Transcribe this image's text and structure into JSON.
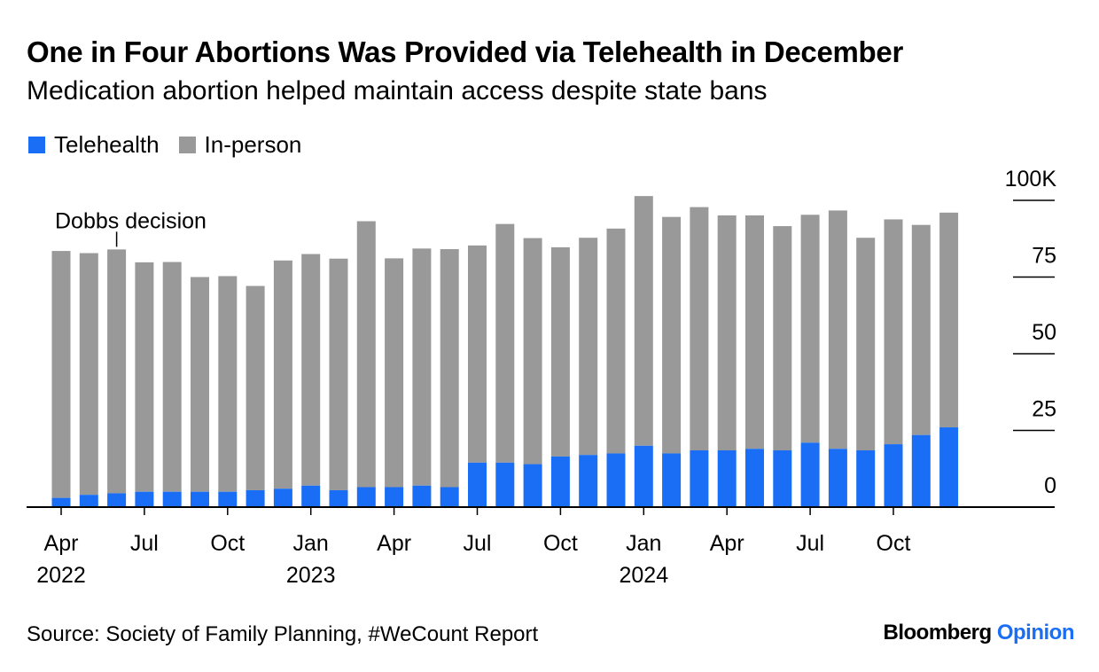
{
  "header": {
    "title": "One in Four Abortions Was Provided via Telehealth in December",
    "subtitle": "Medication abortion helped maintain access despite state bans"
  },
  "legend": [
    {
      "label": "Telehealth",
      "color": "#1a6ef5"
    },
    {
      "label": "In-person",
      "color": "#999999"
    }
  ],
  "footer": {
    "source": "Source: Society of Family Planning, #WeCount Report",
    "brand_main": "Bloomberg",
    "brand_accent": "Opinion"
  },
  "chart_data": {
    "type": "bar",
    "stacked": true,
    "categories": [
      "2022-04",
      "2022-05",
      "2022-06",
      "2022-07",
      "2022-08",
      "2022-09",
      "2022-10",
      "2022-11",
      "2022-12",
      "2023-01",
      "2023-02",
      "2023-03",
      "2023-04",
      "2023-05",
      "2023-06",
      "2023-07",
      "2023-08",
      "2023-09",
      "2023-10",
      "2023-11",
      "2023-12",
      "2024-01",
      "2024-02",
      "2024-03",
      "2024-04",
      "2024-05",
      "2024-06",
      "2024-07",
      "2024-08",
      "2024-09",
      "2024-10",
      "2024-11",
      "2024-12"
    ],
    "series": [
      {
        "name": "Telehealth",
        "color": "#1a6ef5",
        "values": [
          3.0,
          4.0,
          4.5,
          5.0,
          5.0,
          5.0,
          5.0,
          5.5,
          6.0,
          7.0,
          5.5,
          6.5,
          6.5,
          7.0,
          6.5,
          14.5,
          14.5,
          14.0,
          16.5,
          17.0,
          17.5,
          20.0,
          17.5,
          18.5,
          18.5,
          19.0,
          18.5,
          21.0,
          19.0,
          18.5,
          20.5,
          23.5,
          26.0
        ]
      },
      {
        "name": "In-person",
        "color": "#999999",
        "values": [
          80.5,
          78.8,
          79.5,
          74.8,
          74.9,
          70.0,
          70.3,
          66.6,
          74.4,
          75.5,
          75.5,
          86.7,
          74.6,
          77.3,
          77.6,
          70.8,
          77.8,
          73.7,
          68.2,
          70.8,
          73.3,
          81.4,
          77.1,
          79.3,
          76.6,
          76.1,
          73.1,
          74.3,
          77.7,
          69.3,
          73.3,
          68.5,
          70.0
        ]
      }
    ],
    "x_ticks": [
      {
        "index": 0,
        "label": "Apr",
        "year": "2022"
      },
      {
        "index": 3,
        "label": "Jul",
        "year": ""
      },
      {
        "index": 6,
        "label": "Oct",
        "year": ""
      },
      {
        "index": 9,
        "label": "Jan",
        "year": "2023"
      },
      {
        "index": 12,
        "label": "Apr",
        "year": ""
      },
      {
        "index": 15,
        "label": "Jul",
        "year": ""
      },
      {
        "index": 18,
        "label": "Oct",
        "year": ""
      },
      {
        "index": 21,
        "label": "Jan",
        "year": "2024"
      },
      {
        "index": 24,
        "label": "Apr",
        "year": ""
      },
      {
        "index": 27,
        "label": "Jul",
        "year": ""
      },
      {
        "index": 30,
        "label": "Oct",
        "year": ""
      }
    ],
    "y_ticks": [
      {
        "value": 0,
        "label": "0"
      },
      {
        "value": 25,
        "label": "25"
      },
      {
        "value": 50,
        "label": "50"
      },
      {
        "value": 75,
        "label": "75"
      },
      {
        "value": 100,
        "label": "100K"
      }
    ],
    "ylim": [
      0,
      100
    ],
    "annotations": [
      {
        "index": 2,
        "text": "Dobbs decision"
      }
    ],
    "legend_position": "top-left",
    "y_axis_side": "right",
    "grid": false
  }
}
